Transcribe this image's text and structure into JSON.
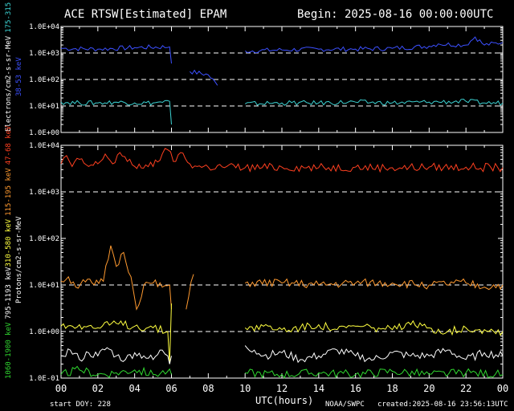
{
  "header": {
    "title": "ACE RTSW[Estimated] EPAM",
    "begin": "Begin: 2025-08-16 00:00:00UTC"
  },
  "footer": {
    "start_doy": "start DOY:  228",
    "xlabel": "UTC(hours)",
    "source": "NOAA/SWPC",
    "created": "created:2025-08-16 23:56:13UTC"
  },
  "colors": {
    "background": "#000000",
    "axes": "#ffffff",
    "e38": "#3c50ff",
    "e175": "#3cd2d2",
    "p47": "#ff4020",
    "p115": "#ff9a30",
    "p310": "#ffff40",
    "p795": "#ffffff",
    "p1060": "#30d830"
  },
  "chart_data": [
    {
      "type": "line",
      "panel": "electrons",
      "ylabel_parts": [
        "Electrons/cm2-s-sr-MeV",
        "175-315 keV",
        "38-53 keV"
      ],
      "ylog": true,
      "ylim": [
        1,
        10000
      ],
      "ytick_labels": [
        "1.0E+00",
        "1.0E+01",
        "1.0E+02",
        "1.0E+03",
        "1.0E+04"
      ],
      "reference_lines": [
        10,
        100,
        1000
      ],
      "xlim": [
        0,
        24
      ],
      "series": [
        {
          "name": "38-53 keV",
          "color": "e38",
          "x": [
            0,
            2,
            4,
            5.9,
            6.0,
            6.1,
            7.0,
            8.0,
            8.5,
            9.9,
            10,
            12,
            14,
            16,
            18,
            20,
            20.5,
            22,
            22.5,
            23,
            24
          ],
          "y": [
            1500,
            1400,
            1600,
            1700,
            400,
            null,
            200,
            150,
            60,
            null,
            1200,
            1300,
            1400,
            1400,
            1500,
            1800,
            2200,
            2000,
            4000,
            2000,
            2500
          ]
        },
        {
          "name": "175-315 keV",
          "color": "e175",
          "x": [
            0,
            1,
            2,
            3,
            4,
            5,
            5.9,
            6.0,
            6.1,
            9.9,
            10,
            12,
            14,
            16,
            18,
            20,
            22,
            23,
            24
          ],
          "y": [
            14,
            13,
            13,
            14,
            13,
            13,
            15,
            2,
            null,
            null,
            12,
            13,
            13,
            14,
            13,
            14,
            15,
            13,
            13
          ]
        }
      ]
    },
    {
      "type": "line",
      "panel": "protons",
      "ylabel_parts": [
        "1060-1900 keV",
        "795-1193 keV",
        "310-580 keV",
        "115-195 keV",
        "47-68 keV",
        "Protons/cm2-s-sr-MeV"
      ],
      "ylog": true,
      "ylim": [
        0.1,
        10000
      ],
      "ytick_labels": [
        "1.0E-01",
        "1.0E+00",
        "1.0E+01",
        "1.0E+02",
        "1.0E+03",
        "1.0E+04"
      ],
      "reference_lines": [
        1,
        10,
        1000
      ],
      "xlim": [
        0,
        24
      ],
      "xtick_labels": [
        "00",
        "02",
        "04",
        "06",
        "08",
        "10",
        "12",
        "14",
        "16",
        "18",
        "20",
        "22",
        "00"
      ],
      "series": [
        {
          "name": "47-68 keV",
          "color": "p47",
          "x": [
            0,
            0.3,
            0.6,
            1,
            1.5,
            2,
            2.4,
            2.8,
            3.2,
            3.6,
            4,
            4.6,
            5,
            5.5,
            5.8,
            6.1,
            6.5,
            7,
            7.4,
            8,
            9,
            10,
            12,
            14,
            16,
            18,
            20,
            22,
            24
          ],
          "y": [
            4000,
            6000,
            3500,
            5000,
            3500,
            4000,
            6500,
            4000,
            7000,
            4500,
            3500,
            3800,
            3500,
            6500,
            8000,
            4500,
            7000,
            4000,
            3500,
            3400,
            3500,
            3300,
            3400,
            3300,
            3400,
            3300,
            3400,
            3400,
            3300
          ]
        },
        {
          "name": "115-195 keV",
          "color": "p115",
          "x": [
            0,
            0.4,
            0.8,
            1.2,
            1.8,
            2.3,
            2.7,
            3.0,
            3.4,
            3.8,
            4.1,
            4.5,
            5,
            5.5,
            5.9,
            6.0,
            6.1,
            6.8,
            7.2,
            9.9,
            10,
            12,
            14,
            16,
            18,
            20,
            22,
            23,
            24
          ],
          "y": [
            12,
            15,
            9,
            13,
            10,
            12,
            70,
            25,
            50,
            15,
            3,
            10,
            11,
            9,
            10,
            3,
            null,
            3,
            17,
            null,
            11,
            11,
            10,
            11,
            11,
            10,
            11,
            9,
            10
          ]
        },
        {
          "name": "310-580 keV",
          "color": "p310",
          "x": [
            0,
            1,
            2,
            3,
            4,
            5,
            5.8,
            5.9,
            6.0,
            6.1,
            9.9,
            10,
            11,
            12,
            13,
            14,
            15,
            16,
            17,
            18,
            19,
            20,
            21,
            22,
            23,
            24
          ],
          "y": [
            1.3,
            1.4,
            1.2,
            1.5,
            1.3,
            1.2,
            1.0,
            0.2,
            4,
            null,
            null,
            1.2,
            1.3,
            1.1,
            1.2,
            1.4,
            1.1,
            1.3,
            1.2,
            1.1,
            1.4,
            1.2,
            1.0,
            1.2,
            1.1,
            1.0
          ]
        },
        {
          "name": "795-1193 keV",
          "color": "p795",
          "x": [
            0,
            0.5,
            1,
            1.5,
            2,
            2.5,
            3,
            3.5,
            4,
            4.5,
            5,
            5.5,
            5.8,
            5.9,
            6.0,
            6.1,
            9.9,
            10,
            10.5,
            11,
            12,
            13,
            14,
            15,
            16,
            17,
            18,
            19,
            20,
            21,
            22,
            23,
            24
          ],
          "y": [
            0.3,
            0.4,
            0.25,
            0.35,
            0.3,
            0.45,
            0.3,
            0.25,
            0.35,
            0.3,
            0.25,
            0.4,
            0.3,
            0.2,
            0.3,
            null,
            null,
            0.5,
            0.4,
            0.3,
            0.35,
            0.25,
            0.3,
            0.4,
            0.3,
            0.25,
            0.35,
            0.3,
            0.3,
            0.4,
            0.25,
            0.35,
            0.3
          ]
        },
        {
          "name": "1060-1900 keV",
          "color": "p1060",
          "x": [
            0,
            1,
            2,
            3,
            4,
            5,
            5.8,
            6.0,
            6.1,
            9.9,
            10,
            12,
            14,
            16,
            18,
            20,
            22,
            24
          ],
          "y": [
            0.12,
            0.15,
            0.12,
            0.13,
            0.15,
            0.12,
            0.14,
            0.12,
            null,
            null,
            0.13,
            0.12,
            0.13,
            0.12,
            0.14,
            0.12,
            0.13,
            0.12
          ]
        }
      ]
    }
  ]
}
